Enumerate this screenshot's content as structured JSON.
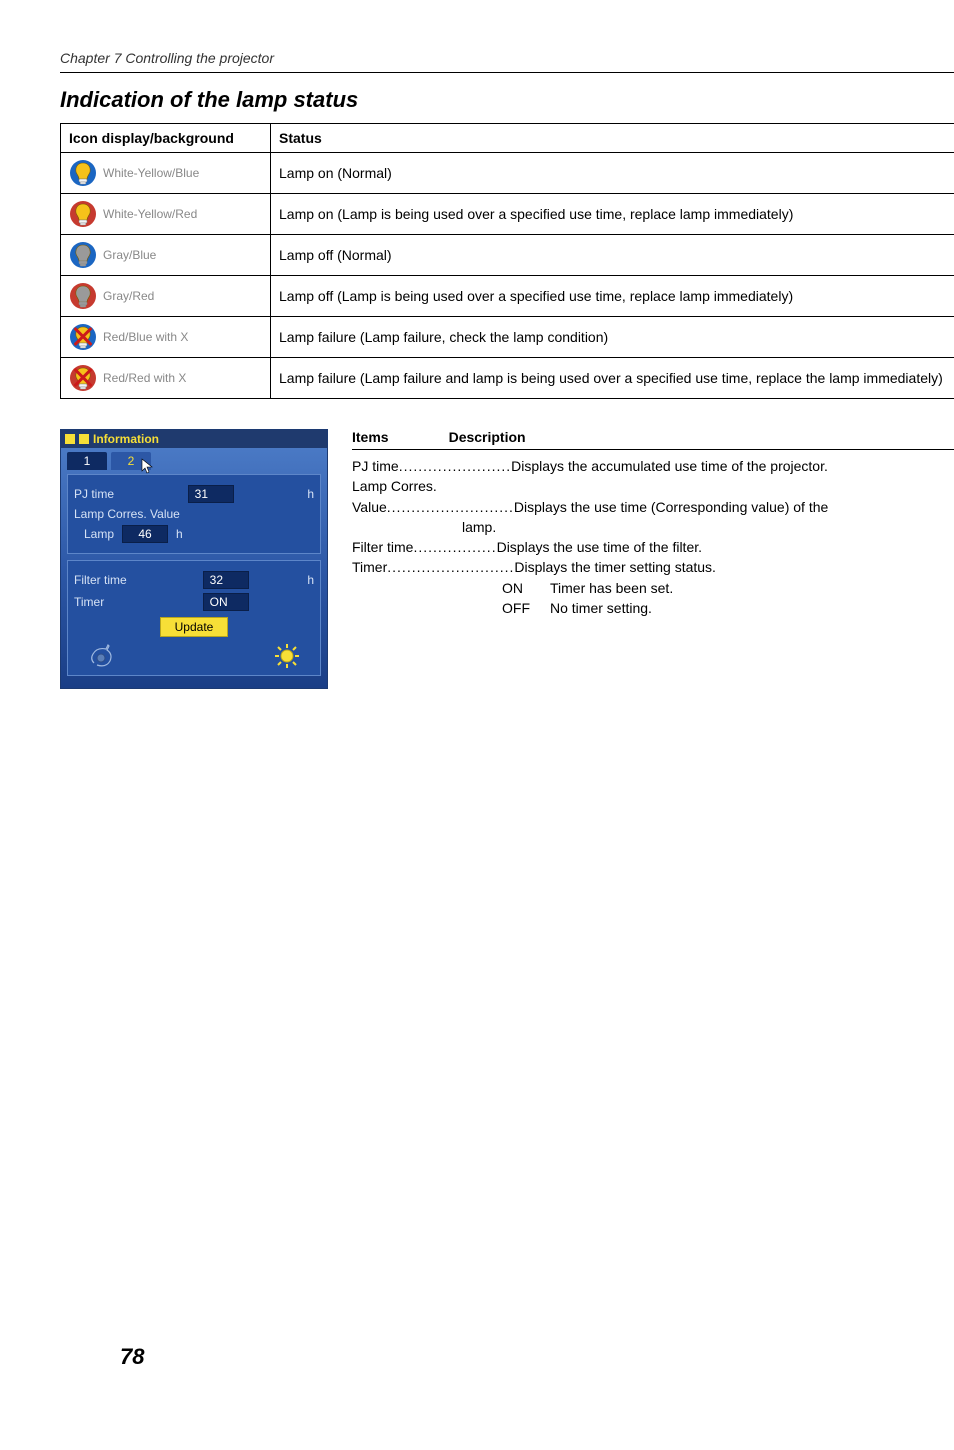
{
  "page": {
    "chapter": "Chapter 7 Controlling the projector",
    "section_title": "Indication of the lamp status",
    "page_number": "78"
  },
  "status_table": {
    "headers": {
      "col1": "Icon display/background",
      "col2": "Status"
    },
    "rows": [
      {
        "label": "White-Yellow/Blue",
        "status": "Lamp on (Normal)",
        "bulb_fill": "#f6c21a",
        "bulb_bg": "#1b66c2",
        "screw_fill": "#f4f4f4",
        "cross": false
      },
      {
        "label": "White-Yellow/Red",
        "status": "Lamp on (Lamp is being used over a specified use time, replace lamp immediately)",
        "bulb_fill": "#f6c21a",
        "bulb_bg": "#c63a2f",
        "screw_fill": "#f4f4f4",
        "cross": false
      },
      {
        "label": "Gray/Blue",
        "status": "Lamp off (Normal)",
        "bulb_fill": "#9a9a9a",
        "bulb_bg": "#1b66c2",
        "screw_fill": "#9a9a9a",
        "cross": false
      },
      {
        "label": "Gray/Red",
        "status": "Lamp off (Lamp is being used over a specified use time, replace lamp immediately)",
        "bulb_fill": "#9a9a9a",
        "bulb_bg": "#c63a2f",
        "screw_fill": "#9a9a9a",
        "cross": false
      },
      {
        "label": "Red/Blue with X",
        "status": "Lamp failure (Lamp failure, check the lamp condition)",
        "bulb_fill": "#f6c21a",
        "bulb_bg": "#1b66c2",
        "screw_fill": "#f4f4f4",
        "cross": true
      },
      {
        "label": "Red/Red with X",
        "status": "Lamp failure (Lamp failure and lamp is being used over a specified use time, replace the lamp immediately)",
        "bulb_fill": "#f6c21a",
        "bulb_bg": "#c63a2f",
        "screw_fill": "#f4f4f4",
        "cross": true
      }
    ]
  },
  "info_panel": {
    "title": "Information",
    "tabs": [
      "1",
      "2"
    ],
    "active_tab": 1,
    "pj_time_label": "PJ time",
    "pj_time_value": "31",
    "lamp_corres_label": "Lamp Corres. Value",
    "lamp_label": "Lamp",
    "lamp_value": "46",
    "unit": "h",
    "filter_time_label": "Filter time",
    "filter_time_value": "32",
    "timer_label": "Timer",
    "timer_value": "ON",
    "update_label": "Update"
  },
  "desc": {
    "headers": {
      "items": "Items",
      "description": "Description"
    },
    "rows": [
      {
        "item": "PJ time",
        "dots": ".......................",
        "text": "Displays the accumulated use time of the projector."
      },
      {
        "item": "Lamp Corres.",
        "dots": "",
        "text": ""
      },
      {
        "item": "Value",
        "dots": "..........................",
        "text": "Displays the use time (Corresponding value) of the",
        "cont": "lamp."
      },
      {
        "item": "Filter time",
        "dots": ".................",
        "text": "Displays the use time of the filter."
      },
      {
        "item": "Timer",
        "dots": "..........................",
        "text": "Displays the timer setting status."
      }
    ],
    "sub": [
      {
        "key": "ON",
        "text": "Timer has been set."
      },
      {
        "key": "OFF",
        "text": "No timer setting."
      }
    ]
  },
  "colors": {
    "cross": "#cc1a1a"
  }
}
